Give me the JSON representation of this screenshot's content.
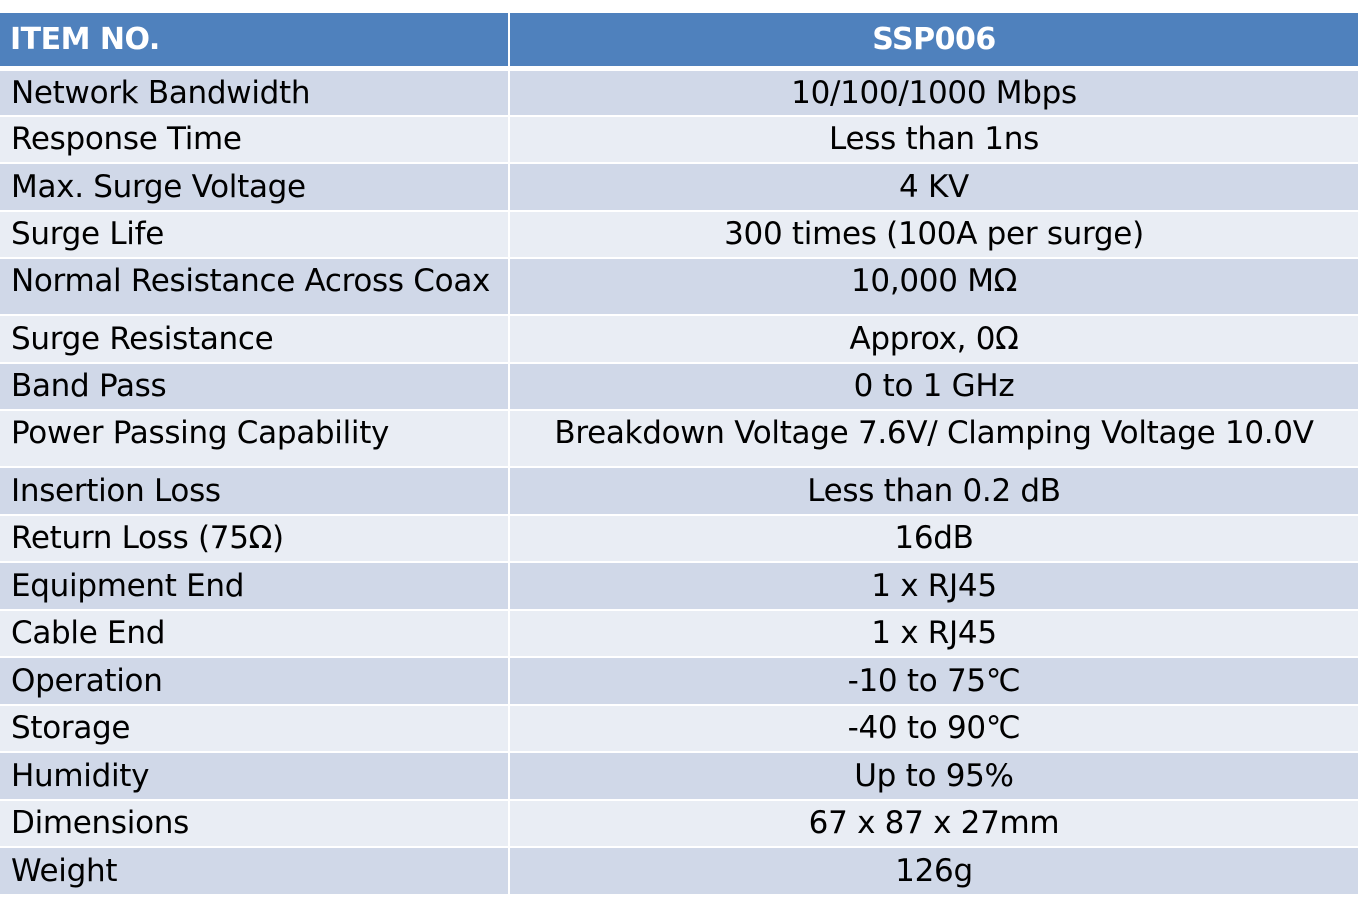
{
  "header": {
    "label": "ITEM NO.",
    "value": "SSP006"
  },
  "colors": {
    "header_bg": "#4f81bd",
    "row_odd_bg": "#d0d8e8",
    "row_even_bg": "#e9edf4"
  },
  "rows": [
    {
      "label": "Network Bandwidth",
      "value": "10/100/1000 Mbps"
    },
    {
      "label": "Response Time",
      "value": "Less than 1ns"
    },
    {
      "label": "Max. Surge Voltage",
      "value": "4 KV"
    },
    {
      "label": "Surge Life",
      "value": "300 times (100A per surge)"
    },
    {
      "label": "Normal Resistance Across Coax",
      "value": "10,000 MΩ"
    },
    {
      "label": "Surge Resistance",
      "value": "Approx, 0Ω"
    },
    {
      "label": "Band Pass",
      "value": "0 to 1 GHz"
    },
    {
      "label": "Power Passing Capability",
      "value": "Breakdown Voltage 7.6V/ Clamping Voltage 10.0V"
    },
    {
      "label": "Insertion Loss",
      "value": "Less than 0.2 dB"
    },
    {
      "label": "Return Loss (75Ω)",
      "value": "16dB"
    },
    {
      "label": "Equipment End",
      "value": "1 x RJ45"
    },
    {
      "label": "Cable End",
      "value": "1 x RJ45"
    },
    {
      "label": "Operation",
      "value": "-10 to 75℃"
    },
    {
      "label": "Storage",
      "value": "-40 to 90℃"
    },
    {
      "label": "Humidity",
      "value": "Up to 95%"
    },
    {
      "label": "Dimensions",
      "value": "67 x 87 x 27mm"
    },
    {
      "label": "Weight",
      "value": "126g"
    }
  ]
}
